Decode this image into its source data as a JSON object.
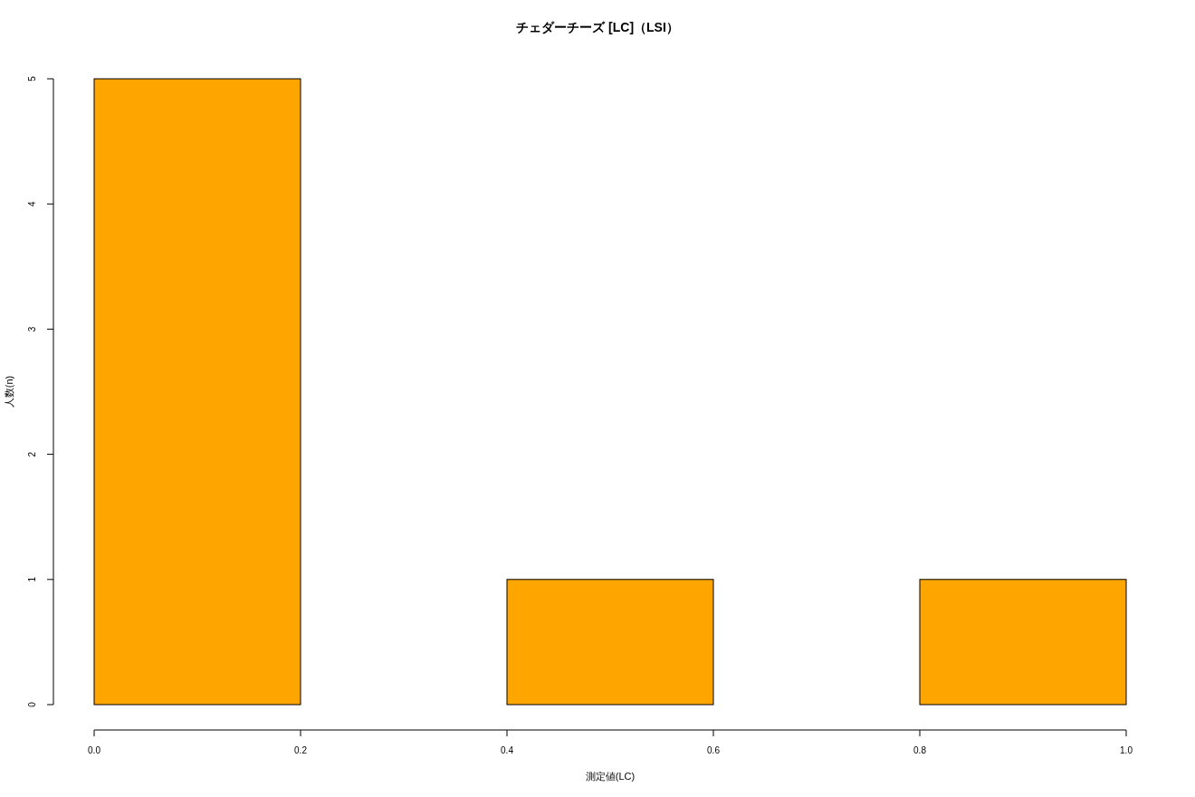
{
  "chart_data": {
    "type": "histogram",
    "title": "チェダーチーズ [LC]（LSI）",
    "xlabel": "測定値(LC)",
    "ylabel": "人数(n)",
    "bins": [
      0,
      0.2,
      0.4,
      0.6,
      0.8,
      1.0
    ],
    "values": [
      5,
      0,
      1,
      0,
      1
    ],
    "color": "#ffa500",
    "xlim": [
      0,
      1
    ],
    "xticks": [
      {
        "value": 0,
        "label": "0.0"
      },
      0.2,
      0.4,
      0.6,
      0.8,
      {
        "value": 1,
        "label": "1.0"
      }
    ],
    "ylim": [
      0,
      5
    ],
    "yticks": [
      0,
      1,
      2,
      3,
      4,
      5
    ],
    "grid": false
  }
}
